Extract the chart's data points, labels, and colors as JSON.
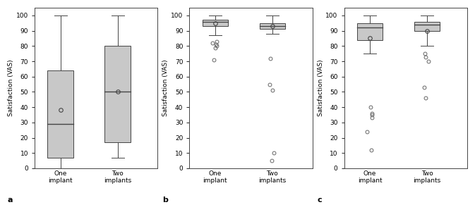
{
  "panel_a": {
    "label": "a",
    "one_implant": {
      "whisker_low": 0,
      "q1": 7,
      "median": 29,
      "q3": 64,
      "whisker_high": 100,
      "mean": 38,
      "outliers": []
    },
    "two_implants": {
      "whisker_low": 7,
      "q1": 17,
      "median": 50,
      "q3": 80,
      "whisker_high": 100,
      "mean": 50,
      "outliers": []
    }
  },
  "panel_b": {
    "label": "b",
    "one_implant": {
      "whisker_low": 87,
      "q1": 93,
      "median": 96,
      "q3": 97,
      "whisker_high": 100,
      "mean": 95,
      "outliers": [
        83,
        82,
        81,
        80,
        79,
        71
      ]
    },
    "two_implants": {
      "whisker_low": 88,
      "q1": 91,
      "median": 93,
      "q3": 95,
      "whisker_high": 100,
      "mean": 93,
      "outliers": [
        72,
        55,
        51,
        10,
        5
      ]
    }
  },
  "panel_c": {
    "label": "c",
    "one_implant": {
      "whisker_low": 75,
      "q1": 84,
      "median": 92,
      "q3": 95,
      "whisker_high": 100,
      "mean": 85,
      "outliers": [
        40,
        36,
        35,
        33,
        24,
        12
      ]
    },
    "two_implants": {
      "whisker_low": 80,
      "q1": 90,
      "median": 94,
      "q3": 96,
      "whisker_high": 100,
      "mean": 90,
      "outliers": [
        75,
        73,
        70,
        53,
        46
      ]
    }
  },
  "box_color": "#c8c8c8",
  "box_edge_color": "#444444",
  "whisker_color": "#444444",
  "median_color": "#444444",
  "mean_marker_color": "none",
  "mean_marker_edge_color": "#444444",
  "outlier_marker_color": "none",
  "outlier_marker_edge_color": "#666666",
  "ylabel": "Satisfaction (VAS)",
  "ylim": [
    0,
    105
  ],
  "yticks": [
    0,
    10,
    20,
    30,
    40,
    50,
    60,
    70,
    80,
    90,
    100
  ],
  "xtick_labels": [
    "One\nimplant",
    "Two\nimplants"
  ],
  "background_color": "#ffffff",
  "box_width": 0.45,
  "positions": [
    1,
    2
  ]
}
